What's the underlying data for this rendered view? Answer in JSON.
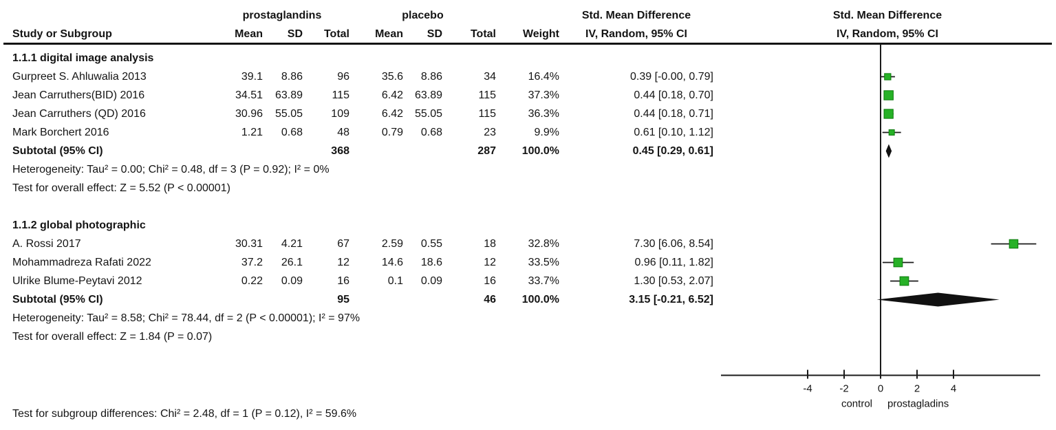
{
  "header": {
    "group1": "prostaglandins",
    "group2": "placebo",
    "study": "Study or Subgroup",
    "mean": "Mean",
    "sd": "SD",
    "total": "Total",
    "weight": "Weight",
    "smd_line1": "Std. Mean Difference",
    "smd_line2": "IV, Random, 95% CI"
  },
  "chart_data": {
    "type": "forest",
    "effect_measure": "Std. Mean Difference",
    "method": "IV, Random, 95% CI",
    "xticks": [
      -4,
      -2,
      0,
      2,
      4
    ],
    "xlim": [
      -8.75,
      8.75
    ],
    "axis_labels": {
      "left": "control",
      "right": "prostagladins"
    },
    "colors": {
      "square_fill": "#27b127",
      "square_stroke": "#0c7a0c",
      "line": "#1a1a1a",
      "diamond": "#111111"
    },
    "groups": [
      {
        "name": "1.1.1 digital image analysis",
        "studies": [
          {
            "name": "Gurpreet S. Ahluwalia 2013",
            "mean1": "39.1",
            "sd1": "8.86",
            "total1": "96",
            "mean2": "35.6",
            "sd2": "8.86",
            "total2": "34",
            "weight": "16.4%",
            "ci_text": "0.39 [-0.00, 0.79]",
            "est": 0.39,
            "lo": 0.0,
            "hi": 0.79,
            "weight_pct": 16.4
          },
          {
            "name": "Jean Carruthers(BID) 2016",
            "mean1": "34.51",
            "sd1": "63.89",
            "total1": "115",
            "mean2": "6.42",
            "sd2": "63.89",
            "total2": "115",
            "weight": "37.3%",
            "ci_text": "0.44 [0.18, 0.70]",
            "est": 0.44,
            "lo": 0.18,
            "hi": 0.7,
            "weight_pct": 37.3
          },
          {
            "name": "Jean Carruthers (QD) 2016",
            "mean1": "30.96",
            "sd1": "55.05",
            "total1": "109",
            "mean2": "6.42",
            "sd2": "55.05",
            "total2": "115",
            "weight": "36.3%",
            "ci_text": "0.44 [0.18, 0.71]",
            "est": 0.44,
            "lo": 0.18,
            "hi": 0.71,
            "weight_pct": 36.3
          },
          {
            "name": "Mark Borchert 2016",
            "mean1": "1.21",
            "sd1": "0.68",
            "total1": "48",
            "mean2": "0.79",
            "sd2": "0.68",
            "total2": "23",
            "weight": "9.9%",
            "ci_text": "0.61 [0.10, 1.12]",
            "est": 0.61,
            "lo": 0.1,
            "hi": 1.12,
            "weight_pct": 9.9
          }
        ],
        "subtotal": {
          "label": "Subtotal (95% CI)",
          "total1": "368",
          "total2": "287",
          "weight": "100.0%",
          "ci_text": "0.45 [0.29, 0.61]",
          "est": 0.45,
          "lo": 0.29,
          "hi": 0.61
        },
        "heterogeneity": "Heterogeneity: Tau² = 0.00; Chi² = 0.48, df = 3 (P = 0.92); I² = 0%",
        "overall_effect": "Test for overall effect: Z = 5.52 (P < 0.00001)"
      },
      {
        "name": "1.1.2 global photographic",
        "studies": [
          {
            "name": "A. Rossi 2017",
            "mean1": "30.31",
            "sd1": "4.21",
            "total1": "67",
            "mean2": "2.59",
            "sd2": "0.55",
            "total2": "18",
            "weight": "32.8%",
            "ci_text": "7.30 [6.06, 8.54]",
            "est": 7.3,
            "lo": 6.06,
            "hi": 8.54,
            "weight_pct": 32.8
          },
          {
            "name": "Mohammadreza Rafati 2022",
            "mean1": "37.2",
            "sd1": "26.1",
            "total1": "12",
            "mean2": "14.6",
            "sd2": "18.6",
            "total2": "12",
            "weight": "33.5%",
            "ci_text": "0.96 [0.11, 1.82]",
            "est": 0.96,
            "lo": 0.11,
            "hi": 1.82,
            "weight_pct": 33.5
          },
          {
            "name": "Ulrike Blume-Peytavi 2012",
            "mean1": "0.22",
            "sd1": "0.09",
            "total1": "16",
            "mean2": "0.1",
            "sd2": "0.09",
            "total2": "16",
            "weight": "33.7%",
            "ci_text": "1.30 [0.53, 2.07]",
            "est": 1.3,
            "lo": 0.53,
            "hi": 2.07,
            "weight_pct": 33.7
          }
        ],
        "subtotal": {
          "label": "Subtotal (95% CI)",
          "total1": "95",
          "total2": "46",
          "weight": "100.0%",
          "ci_text": "3.15 [-0.21, 6.52]",
          "est": 3.15,
          "lo": -0.21,
          "hi": 6.52
        },
        "heterogeneity": "Heterogeneity: Tau² = 8.58; Chi² = 78.44, df = 2 (P < 0.00001); I² = 97%",
        "overall_effect": "Test for overall effect: Z = 1.84 (P = 0.07)"
      }
    ],
    "footer": "Test for subgroup differences: Chi² = 2.48, df = 1 (P = 0.12), I² = 59.6%"
  }
}
